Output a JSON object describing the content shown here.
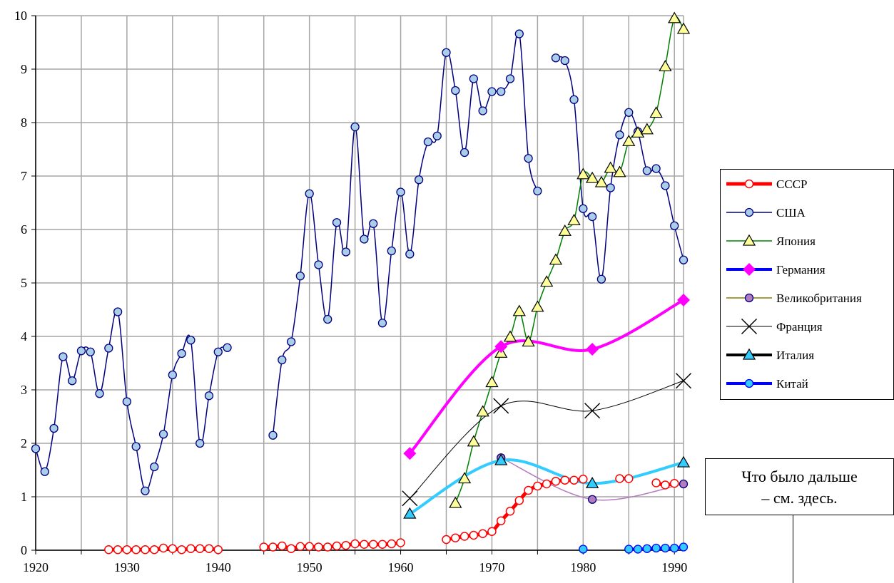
{
  "chart_data": {
    "type": "line",
    "xlim": [
      1920,
      1991
    ],
    "ylim": [
      0,
      10
    ],
    "x_ticks": [
      "1920",
      "1930",
      "1940",
      "1950",
      "1960",
      "1970",
      "1980",
      "1990"
    ],
    "y_ticks": [
      "0",
      "1",
      "2",
      "3",
      "4",
      "5",
      "6",
      "7",
      "8",
      "9",
      "10"
    ],
    "grid": true,
    "legend_position": "right",
    "series": [
      {
        "name": "СССР",
        "color": "#ff0000",
        "marker": "circle-open",
        "line_width": 5,
        "points": [
          [
            1928,
            0.01
          ],
          [
            1929,
            0.01
          ],
          [
            1930,
            0.01
          ],
          [
            1931,
            0.01
          ],
          [
            1932,
            0.01
          ],
          [
            1933,
            0.01
          ],
          [
            1934,
            0.04
          ],
          [
            1935,
            0.03
          ],
          [
            1936,
            0.01
          ],
          [
            1937,
            0.03
          ],
          [
            1938,
            0.03
          ],
          [
            1939,
            0.03
          ],
          [
            1940,
            0.01
          ],
          null,
          [
            1945,
            0.06
          ],
          [
            1946,
            0.06
          ],
          [
            1947,
            0.08
          ],
          [
            1948,
            0.03
          ],
          [
            1949,
            0.07
          ],
          [
            1950,
            0.07
          ],
          [
            1951,
            0.06
          ],
          [
            1952,
            0.06
          ],
          [
            1953,
            0.08
          ],
          [
            1954,
            0.09
          ],
          [
            1955,
            0.12
          ],
          [
            1956,
            0.11
          ],
          [
            1957,
            0.11
          ],
          [
            1958,
            0.11
          ],
          [
            1959,
            0.12
          ],
          [
            1960,
            0.14
          ],
          null,
          [
            1965,
            0.2
          ],
          [
            1966,
            0.23
          ],
          [
            1967,
            0.26
          ],
          [
            1968,
            0.28
          ],
          [
            1969,
            0.31
          ],
          [
            1970,
            0.35
          ],
          [
            1971,
            0.55
          ],
          [
            1972,
            0.73
          ],
          [
            1973,
            0.93
          ],
          [
            1974,
            1.12
          ],
          [
            1975,
            1.2
          ],
          [
            1976,
            1.24
          ],
          [
            1977,
            1.29
          ],
          [
            1978,
            1.31
          ],
          [
            1979,
            1.31
          ],
          [
            1980,
            1.33
          ],
          null,
          [
            1984,
            1.34
          ],
          [
            1985,
            1.34
          ],
          null,
          [
            1988,
            1.26
          ],
          [
            1989,
            1.22
          ],
          [
            1990,
            1.25
          ]
        ]
      },
      {
        "name": "США",
        "color": "#000080",
        "marker": "circle",
        "marker_fill": "#aacde8",
        "line_width": 1.5,
        "points": [
          [
            1920,
            1.9
          ],
          [
            1921,
            1.47
          ],
          [
            1922,
            2.28
          ],
          [
            1923,
            3.62
          ],
          [
            1924,
            3.17
          ],
          [
            1925,
            3.73
          ],
          [
            1926,
            3.71
          ],
          [
            1927,
            2.93
          ],
          [
            1928,
            3.78
          ],
          [
            1929,
            4.46
          ],
          [
            1930,
            2.78
          ],
          [
            1931,
            1.94
          ],
          [
            1932,
            1.11
          ],
          [
            1933,
            1.56
          ],
          [
            1934,
            2.17
          ],
          [
            1935,
            3.28
          ],
          [
            1936,
            3.68
          ],
          [
            1937,
            3.93
          ],
          [
            1938,
            2.0
          ],
          [
            1939,
            2.89
          ],
          [
            1940,
            3.71
          ],
          [
            1941,
            3.79
          ],
          null,
          [
            1946,
            2.15
          ],
          [
            1947,
            3.56
          ],
          [
            1948,
            3.9
          ],
          [
            1949,
            5.13
          ],
          [
            1950,
            6.67
          ],
          [
            1951,
            5.34
          ],
          [
            1952,
            4.32
          ],
          [
            1953,
            6.13
          ],
          [
            1954,
            5.58
          ],
          [
            1955,
            7.92
          ],
          [
            1956,
            5.82
          ],
          [
            1957,
            6.11
          ],
          [
            1958,
            4.25
          ],
          [
            1959,
            5.6
          ],
          [
            1960,
            6.7
          ],
          [
            1961,
            5.54
          ],
          [
            1962,
            6.93
          ],
          [
            1963,
            7.64
          ],
          [
            1964,
            7.75
          ],
          [
            1965,
            9.31
          ],
          [
            1966,
            8.6
          ],
          [
            1967,
            7.44
          ],
          [
            1968,
            8.82
          ],
          [
            1969,
            8.22
          ],
          [
            1970,
            8.58
          ],
          [
            1971,
            8.58
          ],
          [
            1972,
            8.82
          ],
          [
            1973,
            9.66
          ],
          [
            1974,
            7.33
          ],
          [
            1975,
            6.72
          ],
          null,
          [
            1977,
            9.21
          ],
          [
            1978,
            9.16
          ],
          [
            1979,
            8.43
          ],
          [
            1980,
            6.39
          ],
          [
            1981,
            6.24
          ],
          [
            1982,
            5.07
          ],
          [
            1983,
            6.78
          ],
          [
            1984,
            7.77
          ],
          [
            1985,
            8.19
          ],
          [
            1986,
            7.83
          ],
          [
            1987,
            7.1
          ],
          [
            1988,
            7.14
          ],
          [
            1989,
            6.82
          ],
          [
            1990,
            6.07
          ],
          [
            1991,
            5.43
          ]
        ]
      },
      {
        "name": "Япония",
        "color": "#008000",
        "marker": "triangle",
        "marker_fill": "#ffff99",
        "line_width": 1.5,
        "points": [
          [
            1966,
            0.88
          ],
          [
            1967,
            1.34
          ],
          [
            1968,
            2.03
          ],
          [
            1969,
            2.59
          ],
          [
            1970,
            3.14
          ],
          [
            1971,
            3.69
          ],
          [
            1972,
            3.99
          ],
          [
            1973,
            4.47
          ],
          [
            1974,
            3.9
          ],
          [
            1975,
            4.55
          ],
          [
            1976,
            5.02
          ],
          [
            1977,
            5.43
          ],
          [
            1978,
            5.97
          ],
          [
            1979,
            6.17
          ],
          [
            1980,
            7.03
          ],
          [
            1981,
            6.96
          ],
          [
            1982,
            6.88
          ],
          [
            1983,
            7.15
          ],
          [
            1984,
            7.07
          ],
          [
            1985,
            7.65
          ],
          [
            1986,
            7.81
          ],
          [
            1987,
            7.87
          ],
          [
            1988,
            8.18
          ],
          [
            1989,
            9.05
          ],
          [
            1990,
            9.95
          ],
          [
            1991,
            9.75
          ]
        ]
      },
      {
        "name": "Германия",
        "color": "#ff00ff",
        "marker": "diamond",
        "line_width": 4,
        "line_color": "#0000ff",
        "points": [
          [
            1961,
            1.81
          ],
          [
            1971,
            3.81
          ],
          [
            1981,
            3.76
          ],
          [
            1991,
            4.68
          ]
        ]
      },
      {
        "name": "Великобритания",
        "color": "#b57bbf",
        "marker": "circle",
        "line_width": 1.5,
        "line_color": "#808000",
        "points": [
          [
            1971,
            1.73
          ],
          [
            1981,
            0.95
          ],
          [
            1991,
            1.24
          ]
        ]
      },
      {
        "name": "Франция",
        "color": "#000000",
        "marker": "x",
        "line_width": 1,
        "points": [
          [
            1961,
            0.97
          ],
          [
            1971,
            2.7
          ],
          [
            1981,
            2.61
          ],
          [
            1991,
            3.17
          ]
        ]
      },
      {
        "name": "Италия",
        "color": "#33ccff",
        "marker": "triangle",
        "line_width": 4,
        "line_color": "#000000",
        "points": [
          [
            1961,
            0.68
          ],
          [
            1971,
            1.68
          ],
          [
            1981,
            1.25
          ],
          [
            1991,
            1.64
          ]
        ]
      },
      {
        "name": "Китай",
        "color": "#0000ff",
        "marker": "circle",
        "marker_fill": "#33ccff",
        "line_width": 4,
        "points": [
          [
            1980,
            0.02
          ],
          null,
          [
            1985,
            0.02
          ],
          [
            1986,
            0.02
          ],
          [
            1987,
            0.03
          ],
          [
            1988,
            0.04
          ],
          [
            1989,
            0.04
          ],
          [
            1990,
            0.04
          ],
          [
            1991,
            0.06
          ]
        ]
      }
    ]
  },
  "note": {
    "line1": "Что было дальше",
    "line2": "– см. здесь."
  }
}
